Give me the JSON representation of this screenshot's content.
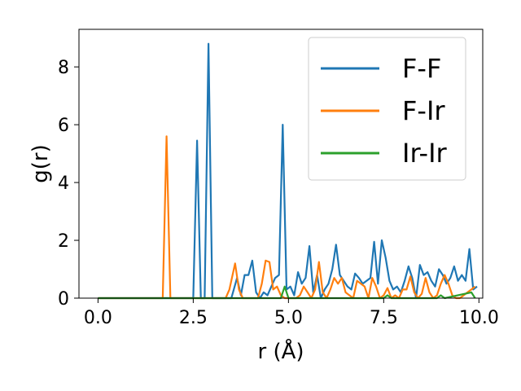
{
  "chart_data": {
    "type": "line",
    "xlabel": "r (Å)",
    "ylabel": "g(r)",
    "xlim": [
      -0.5,
      10.1
    ],
    "ylim": [
      0,
      9.3
    ],
    "xticks": [
      0.0,
      2.5,
      5.0,
      7.5,
      10.0
    ],
    "xtick_labels": [
      "0.0",
      "2.5",
      "5.0",
      "7.5",
      "10.0"
    ],
    "yticks": [
      0,
      2,
      4,
      6,
      8
    ],
    "ytick_labels": [
      "0",
      "2",
      "4",
      "6",
      "8"
    ],
    "grid": false,
    "legend_position": "top-right",
    "series": [
      {
        "name": "F-F",
        "color": "#1f77b4",
        "x": [
          0.0,
          2.5,
          2.6,
          2.7,
          2.75,
          2.8,
          2.9,
          3.0,
          3.05,
          3.5,
          3.65,
          3.75,
          3.85,
          3.95,
          4.05,
          4.15,
          4.25,
          4.35,
          4.45,
          4.55,
          4.65,
          4.75,
          4.85,
          4.95,
          5.05,
          5.15,
          5.25,
          5.35,
          5.45,
          5.55,
          5.65,
          5.75,
          5.85,
          5.95,
          6.05,
          6.15,
          6.25,
          6.35,
          6.45,
          6.55,
          6.65,
          6.75,
          6.85,
          6.95,
          7.05,
          7.15,
          7.25,
          7.35,
          7.45,
          7.55,
          7.65,
          7.75,
          7.85,
          7.95,
          8.05,
          8.15,
          8.25,
          8.35,
          8.45,
          8.55,
          8.65,
          8.75,
          8.85,
          8.95,
          9.05,
          9.15,
          9.25,
          9.35,
          9.45,
          9.55,
          9.65,
          9.75,
          9.85,
          9.95
        ],
        "y": [
          0.0,
          0.0,
          5.45,
          0.0,
          0.0,
          0.0,
          8.8,
          0.0,
          0.0,
          0.0,
          0.7,
          0.1,
          0.8,
          0.8,
          1.3,
          0.2,
          0.0,
          0.2,
          0.1,
          0.4,
          0.7,
          0.8,
          6.0,
          0.3,
          0.4,
          0.1,
          0.9,
          0.5,
          0.7,
          1.8,
          0.2,
          0.8,
          0.0,
          0.3,
          0.5,
          1.0,
          1.85,
          0.8,
          0.6,
          0.4,
          0.3,
          0.85,
          0.7,
          0.5,
          0.6,
          0.7,
          1.95,
          0.5,
          2.0,
          1.4,
          0.6,
          0.3,
          0.4,
          0.2,
          0.6,
          1.1,
          0.7,
          0.0,
          1.15,
          0.8,
          0.9,
          0.6,
          0.4,
          1.0,
          0.8,
          0.5,
          0.7,
          1.1,
          0.6,
          0.8,
          0.6,
          1.7,
          0.3,
          0.4
        ]
      },
      {
        "name": "F-Ir",
        "color": "#ff7f0e",
        "x": [
          0.0,
          1.7,
          1.8,
          1.9,
          2.0,
          3.35,
          3.45,
          3.6,
          3.7,
          3.8,
          3.9,
          4.0,
          4.1,
          4.2,
          4.3,
          4.4,
          4.5,
          4.6,
          4.7,
          4.8,
          4.9,
          5.0,
          5.2,
          5.3,
          5.4,
          5.5,
          5.6,
          5.7,
          5.8,
          5.9,
          6.0,
          6.1,
          6.2,
          6.3,
          6.4,
          6.5,
          6.6,
          6.7,
          6.8,
          6.9,
          7.0,
          7.1,
          7.2,
          7.3,
          7.4,
          7.5,
          7.6,
          7.7,
          7.8,
          7.9,
          8.0,
          8.1,
          8.2,
          8.3,
          8.4,
          8.5,
          8.6,
          8.7,
          8.8,
          8.9,
          9.0,
          9.1,
          9.2,
          9.3,
          9.4,
          9.5,
          9.6,
          9.7,
          9.8,
          9.9
        ],
        "y": [
          0.0,
          0.0,
          5.6,
          0.0,
          0.0,
          0.0,
          0.3,
          1.2,
          0.3,
          0.0,
          0.0,
          0.0,
          0.0,
          0.0,
          0.5,
          1.3,
          1.25,
          0.3,
          0.4,
          0.1,
          0.0,
          0.0,
          0.0,
          0.1,
          0.4,
          0.2,
          0.0,
          0.3,
          1.25,
          0.2,
          0.0,
          0.3,
          0.7,
          0.5,
          0.7,
          0.2,
          0.1,
          0.0,
          0.6,
          0.5,
          0.4,
          0.0,
          0.7,
          0.4,
          0.0,
          0.1,
          0.35,
          0.0,
          0.1,
          0.0,
          0.3,
          0.3,
          0.75,
          0.2,
          0.0,
          0.15,
          0.7,
          0.2,
          0.0,
          0.1,
          0.5,
          0.8,
          0.5,
          0.1,
          0.0,
          0.0,
          0.1,
          0.2,
          0.3,
          0.4
        ]
      },
      {
        "name": "Ir-Ir",
        "color": "#2ca02c",
        "x": [
          0.0,
          4.8,
          4.9,
          5.0,
          5.1,
          7.5,
          7.6,
          7.7,
          8.9,
          9.0,
          9.1,
          9.8,
          9.9
        ],
        "y": [
          0.0,
          0.0,
          0.4,
          0.0,
          0.0,
          0.0,
          0.1,
          0.0,
          0.0,
          0.1,
          0.0,
          0.2,
          0.0
        ]
      }
    ]
  }
}
